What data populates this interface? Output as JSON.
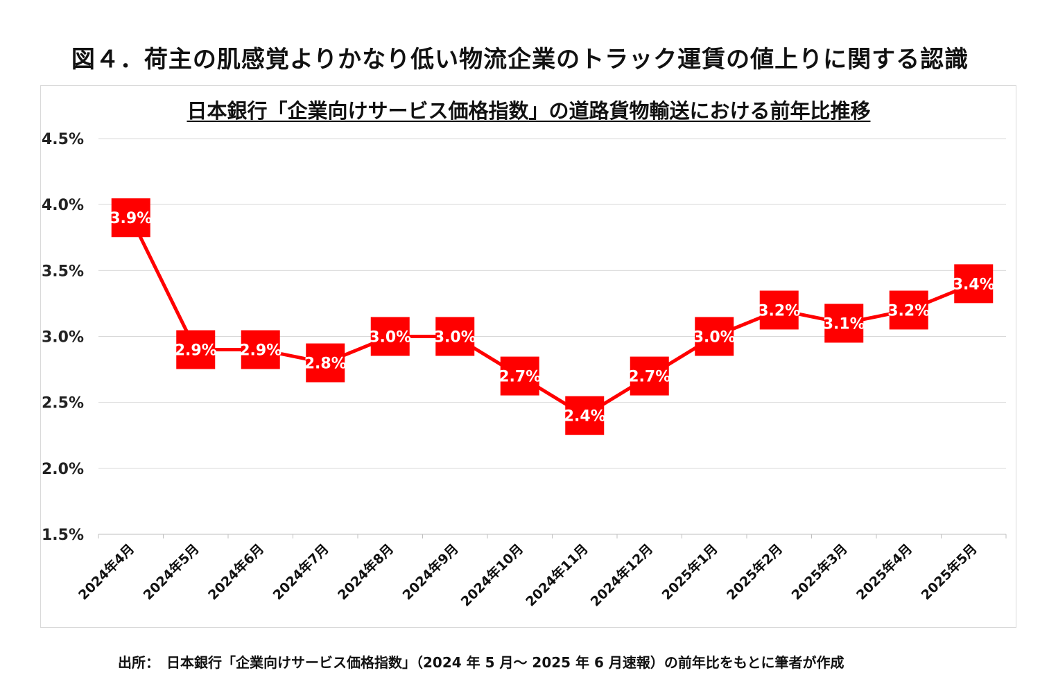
{
  "figure_title": "図４．荷主の肌感覚よりかなり低い物流企業のトラック運賃の値上りに関する認識",
  "footer": "出所：　日本銀行「企業向けサービス価格指数」（2024 年 5 月～ 2025 年 6 月速報）の前年比をもとに筆者が作成",
  "chart_data": {
    "type": "line",
    "title": "日本銀行「企業向けサービス価格指数」の道路貨物輸送における前年比推移",
    "xlabel": "",
    "ylabel": "",
    "categories": [
      "2024年4月",
      "2024年5月",
      "2024年6月",
      "2024年7月",
      "2024年8月",
      "2024年9月",
      "2024年10月",
      "2024年11月",
      "2024年12月",
      "2025年1月",
      "2025年2月",
      "2025年3月",
      "2025年4月",
      "2025年5月"
    ],
    "series": [
      {
        "name": "前年比",
        "values": [
          3.9,
          2.9,
          2.9,
          2.8,
          3.0,
          3.0,
          2.7,
          2.4,
          2.7,
          3.0,
          3.2,
          3.1,
          3.2,
          3.4
        ]
      }
    ],
    "data_labels": [
      "3.9%",
      "2.9%",
      "2.9%",
      "2.8%",
      "3.0%",
      "3.0%",
      "2.7%",
      "2.4%",
      "2.7%",
      "3.0%",
      "3.2%",
      "3.1%",
      "3.2%",
      "3.4%"
    ],
    "ylim": [
      1.5,
      4.5
    ],
    "yticks": [
      1.5,
      2.0,
      2.5,
      3.0,
      3.5,
      4.0,
      4.5
    ],
    "ytick_labels": [
      "1.5%",
      "2.0%",
      "2.5%",
      "3.0%",
      "3.5%",
      "4.0%",
      "4.5%"
    ],
    "grid": true,
    "legend": "none",
    "line_color": "#ff0000",
    "label_box_color": "#ff0000"
  }
}
